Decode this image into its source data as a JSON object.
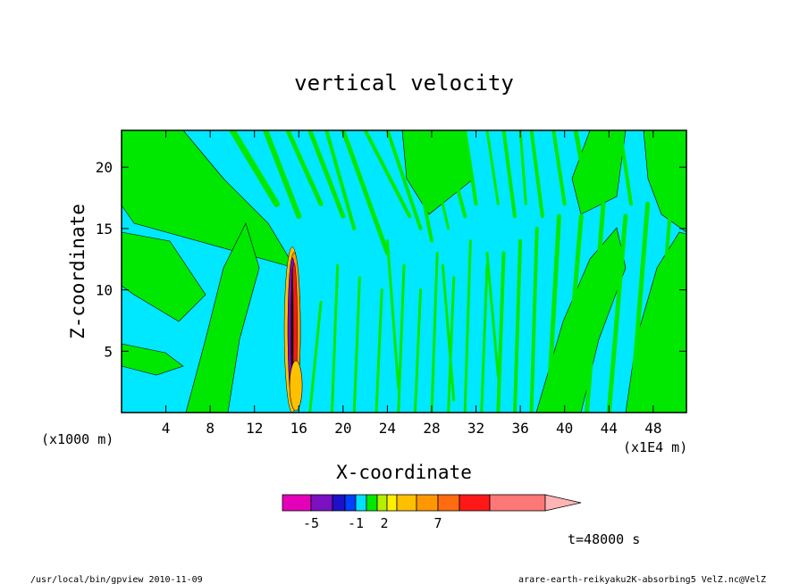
{
  "footer": {
    "left": "/usr/local/bin/gpview  2010-11-09",
    "right": "arare-earth-reikyaku2K-absorbing5_VelZ.nc@VelZ"
  },
  "chart_data": {
    "type": "heatmap",
    "title": "vertical velocity",
    "xlabel": "X-coordinate",
    "ylabel": "Z-coordinate",
    "x_units": "(x1000 m)",
    "x_scale_note": "(x1E4 m)",
    "time_label": "t=48000 s",
    "xlim": [
      0,
      51
    ],
    "ylim": [
      0,
      23
    ],
    "x_ticks": [
      4,
      8,
      12,
      16,
      20,
      24,
      28,
      32,
      36,
      40,
      44,
      48
    ],
    "y_ticks": [
      5,
      10,
      15,
      20
    ],
    "colorbar": {
      "tick_labels": [
        "-5",
        "-1",
        "2",
        "7"
      ],
      "colors": [
        "#e400b8",
        "#7a10c0",
        "#1d10c8",
        "#0040ff",
        "#00e0ff",
        "#00e800",
        "#b4f000",
        "#fff000",
        "#ffc000",
        "#ff9800",
        "#ff6c10",
        "#ff1818",
        "#ff7878",
        "#ffb4b4"
      ]
    },
    "field_summary": {
      "background_level_color": "#00e8ff",
      "positive_band_color": "#00e800",
      "strong_updraft_x": 15.5,
      "strong_updraft_z_range": [
        0,
        13.5
      ]
    }
  }
}
